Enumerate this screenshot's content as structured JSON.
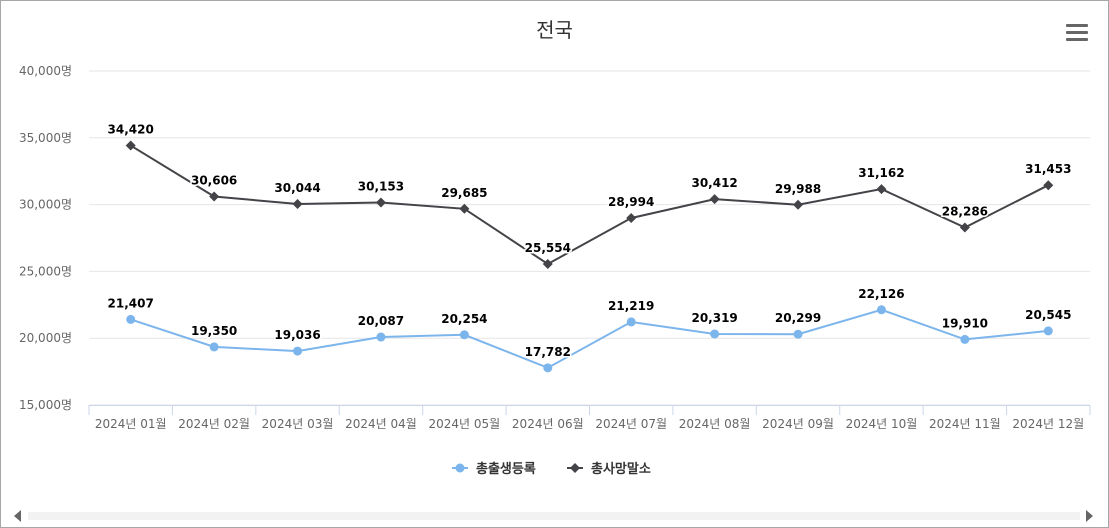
{
  "chart_data": {
    "type": "line",
    "title": "전국",
    "categories": [
      "2024년 01월",
      "2024년 02월",
      "2024년 03월",
      "2024년 04월",
      "2024년 05월",
      "2024년 06월",
      "2024년 07월",
      "2024년 08월",
      "2024년 09월",
      "2024년 10월",
      "2024년 11월",
      "2024년 12월"
    ],
    "y_ticks": [
      "15,000명",
      "20,000명",
      "25,000명",
      "30,000명",
      "35,000명",
      "40,000명"
    ],
    "ylim": [
      15000,
      40000
    ],
    "y_step": 5000,
    "grid": true,
    "legend_position": "bottom",
    "series": [
      {
        "name": "총출생등록",
        "color": "#7cb5ec",
        "marker": "circle",
        "values": [
          21407,
          19350,
          19036,
          20087,
          20254,
          17782,
          21219,
          20319,
          20299,
          22126,
          19910,
          20545
        ],
        "labels": [
          "21,407",
          "19,350",
          "19,036",
          "20,087",
          "20,254",
          "17,782",
          "21,219",
          "20,319",
          "20,299",
          "22,126",
          "19,910",
          "20,545"
        ]
      },
      {
        "name": "총사망말소",
        "color": "#434348",
        "marker": "diamond",
        "values": [
          34420,
          30606,
          30044,
          30153,
          29685,
          25554,
          28994,
          30412,
          29988,
          31162,
          28286,
          31453
        ],
        "labels": [
          "34,420",
          "30,606",
          "30,044",
          "30,153",
          "29,685",
          "25,554",
          "28,994",
          "30,412",
          "29,988",
          "31,162",
          "28,286",
          "31,453"
        ]
      }
    ]
  },
  "toolbar": {
    "menu_icon": "hamburger-menu-icon"
  },
  "scrollbar": {
    "left_icon": "scroll-left-arrow-icon",
    "right_icon": "scroll-right-arrow-icon"
  }
}
